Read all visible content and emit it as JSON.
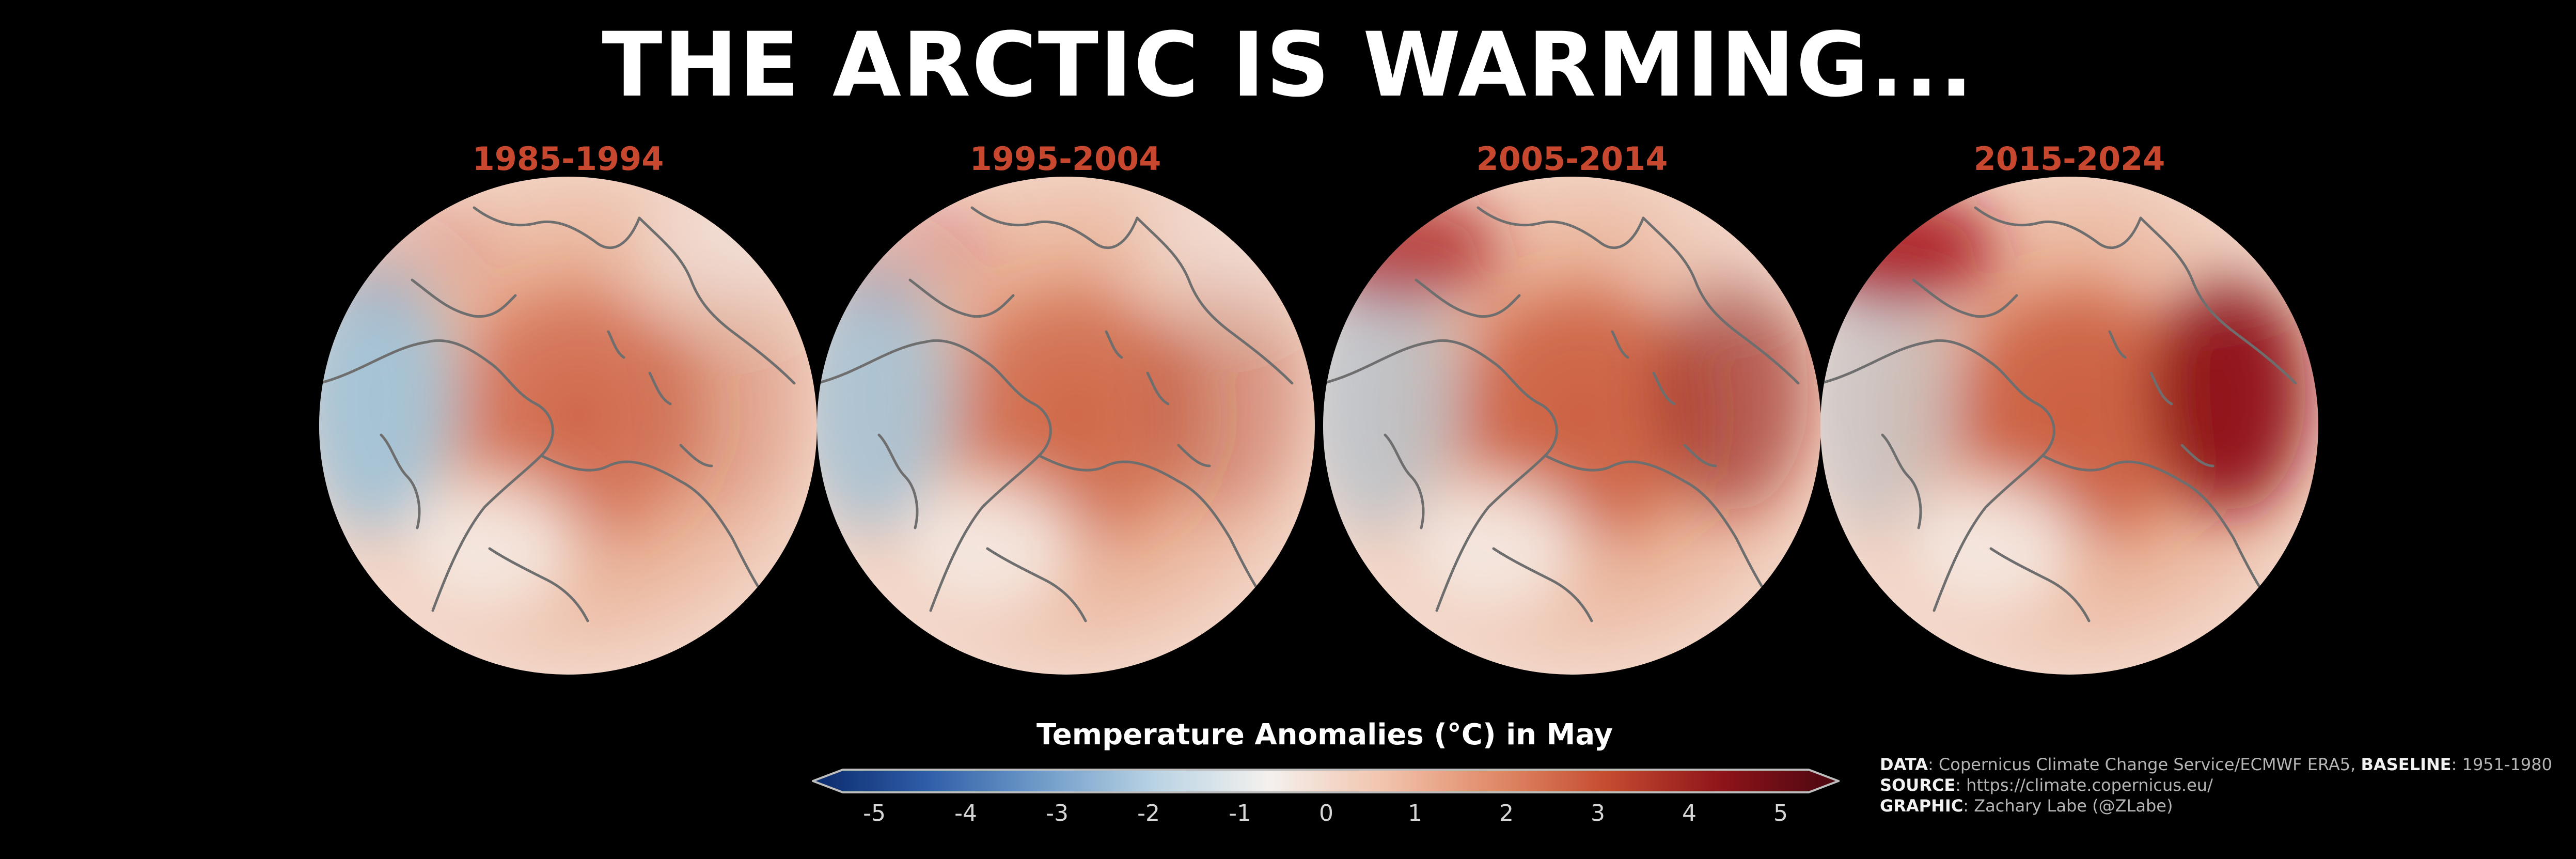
{
  "title": "THE ARCTIC IS WARMING...",
  "maps": [
    {
      "label": "1985-1994",
      "warmth": 0.35
    },
    {
      "label": "1995-2004",
      "warmth": 0.45
    },
    {
      "label": "2005-2014",
      "warmth": 0.85
    },
    {
      "label": "2015-2024",
      "warmth": 1.0
    }
  ],
  "colorbar": {
    "title": "Temperature Anomalies (°C) in May",
    "ticks": [
      "-5",
      "-4",
      "-3",
      "-2",
      "-1",
      "0",
      "1",
      "2",
      "3",
      "4",
      "5"
    ],
    "min": -5,
    "max": 5,
    "colors": [
      "#0a2a6b",
      "#2f5da8",
      "#6f9bc9",
      "#b9d3e4",
      "#f4f1ee",
      "#f2c4ad",
      "#e08a68",
      "#c4492f",
      "#8c1319",
      "#4a0710"
    ]
  },
  "credits": {
    "data_label": "DATA",
    "data_text": ": Copernicus Climate Change Service/ECMWF ERA5, ",
    "baseline_label": "BASELINE",
    "baseline_text": ": 1951-1980",
    "source_label": "SOURCE",
    "source_text": ": https://climate.copernicus.eu/",
    "graphic_label": "GRAPHIC",
    "graphic_text": ": Zachary Labe (@ZLabe)"
  }
}
